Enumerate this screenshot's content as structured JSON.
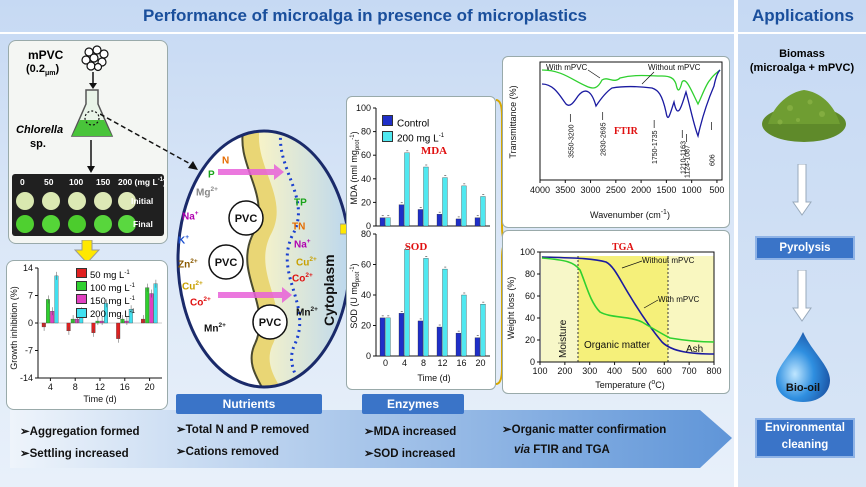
{
  "header": {
    "title": "Performance of microalga in presence of microplastics",
    "applications_title": "Applications"
  },
  "colors": {
    "header_bg": "#c9dbf4",
    "accent": "#1a4f9c",
    "box_blue": "#3a74c8"
  },
  "culture": {
    "mpvc": "mPVC",
    "size_prefix": "(0.2",
    "size_sub": "μm",
    "size_suffix": ")",
    "organism_1": "Chlorella",
    "organism_2": "sp.",
    "concentrations": [
      "0",
      "50",
      "100",
      "150",
      "200 (mg L"
    ],
    "conc_sup": "-1",
    "conc_close": ")",
    "initial": "Initial",
    "final": "Final"
  },
  "cell": {
    "left_ions": [
      {
        "t": "N",
        "sup": "",
        "c": "#e56b00"
      },
      {
        "t": "P",
        "sup": "",
        "c": "#19a319"
      },
      {
        "t": "Mg",
        "sup": "2+",
        "c": "#888888"
      },
      {
        "t": "Na",
        "sup": "+",
        "c": "#b000b0"
      },
      {
        "t": "K",
        "sup": "+",
        "c": "#1a4fd0"
      },
      {
        "t": "Zn",
        "sup": "2+",
        "c": "#8a5a00"
      },
      {
        "t": "Cu",
        "sup": "2+",
        "c": "#c8a000"
      },
      {
        "t": "Co",
        "sup": "2+",
        "c": "#e01010"
      },
      {
        "t": "Mn",
        "sup": "2+",
        "c": "#111111"
      }
    ],
    "right_ions": [
      {
        "t": "TP",
        "sup": "",
        "c": "#19a319"
      },
      {
        "t": "TN",
        "sup": "",
        "c": "#e56b00"
      },
      {
        "t": "Na",
        "sup": "+",
        "c": "#b000b0"
      },
      {
        "t": "Cu",
        "sup": "2+",
        "c": "#c8a000"
      },
      {
        "t": "Co",
        "sup": "2+",
        "c": "#e01010"
      },
      {
        "t": "Mn",
        "sup": "2+",
        "c": "#111111"
      }
    ],
    "pvc_label": "PVC",
    "cytoplasm": "Cytoplasm"
  },
  "growth_chart": {
    "chart_data": {
      "type": "bar",
      "ylabel": "Growth inhibition (%)",
      "xlabel": "Time (d)",
      "x": [
        4,
        8,
        12,
        16,
        20
      ],
      "ylim": [
        -14,
        14
      ],
      "yticks": [
        "14",
        "7",
        "0",
        "-7",
        "-14"
      ],
      "xticks": [
        "4",
        "8",
        "12",
        "16",
        "20"
      ],
      "legend_placement": "top-right",
      "legend": [
        {
          "name": "50 mg L",
          "sup": "-1",
          "color": "#e02020"
        },
        {
          "name": "100 mg L",
          "sup": "-1",
          "color": "#2fd02f"
        },
        {
          "name": "150 mg L",
          "sup": "-1",
          "color": "#e040c0"
        },
        {
          "name": "200 mg L",
          "sup": "-1",
          "color": "#40e0f0"
        }
      ],
      "series": [
        {
          "name": "50 mg L-1",
          "values": [
            -1,
            -2,
            -2.5,
            -4,
            1
          ]
        },
        {
          "name": "100 mg L-1",
          "values": [
            6,
            1,
            0.5,
            1,
            9
          ]
        },
        {
          "name": "150 mg L-1",
          "values": [
            3,
            1,
            0.5,
            0.5,
            7.5
          ]
        },
        {
          "name": "200 mg L-1",
          "values": [
            12,
            3,
            5,
            3.5,
            10
          ]
        }
      ]
    }
  },
  "enzyme_charts": {
    "xlabel": "Time (d)",
    "legend": [
      {
        "name": "Control",
        "sup": "",
        "color": "#1f2fc8"
      },
      {
        "name": "200 mg L",
        "sup": "-1",
        "color": "#50e8f0"
      }
    ],
    "mda": {
      "chart_data": {
        "type": "bar",
        "title": "MDA",
        "ylabel": "MDA (nml mg",
        "ylabel_sub": "prot",
        "ylabel_tail": "-1",
        "ylabel_close": ")",
        "categories": [
          "0",
          "4",
          "8",
          "12",
          "16",
          "20"
        ],
        "ylim": [
          0,
          100
        ],
        "yticks": [
          "0",
          "20",
          "40",
          "60",
          "80",
          "100"
        ],
        "series": [
          {
            "name": "Control",
            "values": [
              7,
              18,
              14,
              10,
              6,
              7
            ]
          },
          {
            "name": "200 mg L-1",
            "values": [
              7,
              62,
              50,
              41,
              34,
              25
            ]
          }
        ]
      }
    },
    "sod": {
      "chart_data": {
        "type": "bar",
        "title": "SOD",
        "ylabel": "SOD (U mg",
        "ylabel_sub": "prot",
        "ylabel_tail": "-1",
        "ylabel_close": ")",
        "categories": [
          "0",
          "4",
          "8",
          "12",
          "16",
          "20"
        ],
        "ylim": [
          0,
          80
        ],
        "yticks": [
          "0",
          "20",
          "40",
          "60",
          "80"
        ],
        "xticks": [
          "0",
          "4",
          "8",
          "12",
          "16",
          "20"
        ],
        "series": [
          {
            "name": "Control",
            "values": [
              25,
              28,
              23,
              19,
              15,
              12
            ]
          },
          {
            "name": "200 mg L-1",
            "values": [
              25,
              70,
              64,
              57,
              40,
              34
            ]
          }
        ]
      }
    }
  },
  "ftir": {
    "chart_data": {
      "type": "line",
      "ylabel": "Transmittance (%)",
      "xlabel": "Wavenumber (cm",
      "xlabel_sup": "-1",
      "xlabel_close": ")",
      "title": "FTIR",
      "xlim": [
        4000,
        400
      ],
      "xticks": [
        "4000",
        "3500",
        "3000",
        "2500",
        "2000",
        "1500",
        "1000",
        "500"
      ],
      "series": [
        {
          "name": "With mPVC",
          "color": "#2fd02f"
        },
        {
          "name": "Without mPVC",
          "color": "#1a1aa0"
        }
      ],
      "peaks": [
        "3550-3200",
        "2830-2695",
        "1750-1735",
        "1210-1163",
        "1124-1087",
        "606"
      ]
    }
  },
  "tga": {
    "chart_data": {
      "type": "line",
      "title": "TGA",
      "ylabel": "Weight loss (%)",
      "xlabel": "Temperature (",
      "xlabel_sup": "o",
      "xlabel_close": "C)",
      "xlim": [
        100,
        800
      ],
      "ylim": [
        0,
        100
      ],
      "xticks": [
        "100",
        "200",
        "300",
        "400",
        "500",
        "600",
        "700",
        "800"
      ],
      "yticks": [
        "0",
        "20",
        "40",
        "60",
        "80",
        "100"
      ],
      "series": [
        {
          "name": "Without mPVC",
          "color": "#1a1aa0"
        },
        {
          "name": "With mPVC",
          "color": "#2fd02f"
        }
      ],
      "regions": [
        "Moisture",
        "Organic matter",
        "Ash"
      ]
    }
  },
  "bottom": {
    "tags": [
      "Nutrients",
      "Enzymes"
    ],
    "col1": [
      "➢Aggregation formed",
      "➢Settling increased"
    ],
    "col2": [
      "➢Total N and P removed",
      "➢Cations removed"
    ],
    "col3": [
      "➢MDA increased",
      "➢SOD increased"
    ],
    "col4a": "➢Organic matter confirmation",
    "col4b_prefix": "via",
    "col4b_rest": " FTIR and TGA"
  },
  "applications": {
    "biomass_1": "Biomass",
    "biomass_2": "(microalga + mPVC)",
    "pyrolysis": "Pyrolysis",
    "biooil": "Bio-oil",
    "env_1": "Environmental",
    "env_2": "cleaning"
  }
}
